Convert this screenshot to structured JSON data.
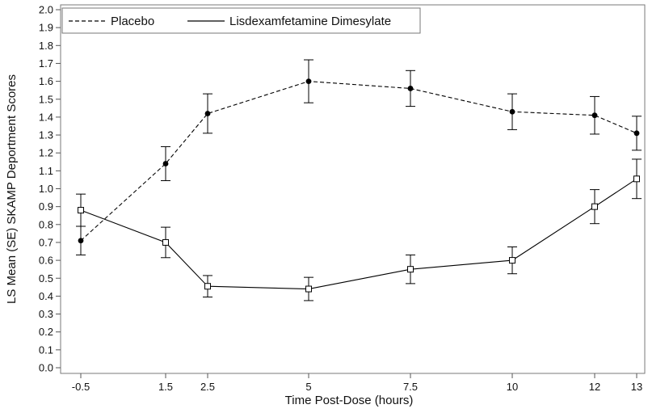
{
  "chart_data": {
    "type": "line",
    "xlabel": "Time Post-Dose (hours)",
    "ylabel": "LS Mean (SE) SKAMP Deportment Scores",
    "ylim": [
      0.0,
      2.0
    ],
    "y_ticks": [
      "0.0",
      "0.1",
      "0.2",
      "0.3",
      "0.4",
      "0.5",
      "0.6",
      "0.7",
      "0.8",
      "0.9",
      "1.0",
      "1.1",
      "1.2",
      "1.3",
      "1.4",
      "1.5",
      "1.6",
      "1.7",
      "1.8",
      "1.9",
      "2.0"
    ],
    "x_ticks": [
      {
        "value": -0.5,
        "label": "-0.5"
      },
      {
        "value": 1.5,
        "label": "1.5"
      },
      {
        "value": 2.5,
        "label": "2.5"
      },
      {
        "value": 5,
        "label": "5"
      },
      {
        "value": 7.5,
        "label": "7.5"
      },
      {
        "value": 10,
        "label": "10"
      },
      {
        "value": 12,
        "label": "12"
      },
      {
        "value": 13,
        "label": "13"
      }
    ],
    "x": [
      -0.5,
      1.5,
      2.5,
      5,
      7.5,
      10,
      12,
      13
    ],
    "legend_position": "top-left",
    "series": [
      {
        "name": "Placebo",
        "line_style": "dashed",
        "marker": "filled-circle",
        "values": [
          0.71,
          1.14,
          1.42,
          1.6,
          1.56,
          1.43,
          1.41,
          1.31
        ],
        "errors": [
          0.08,
          0.095,
          0.11,
          0.12,
          0.1,
          0.1,
          0.105,
          0.095
        ]
      },
      {
        "name": "Lisdexamfetamine Dimesylate",
        "line_style": "solid",
        "marker": "open-square",
        "values": [
          0.88,
          0.7,
          0.455,
          0.44,
          0.55,
          0.6,
          0.9,
          1.055
        ],
        "errors": [
          0.09,
          0.085,
          0.06,
          0.065,
          0.08,
          0.075,
          0.095,
          0.11
        ]
      }
    ]
  }
}
